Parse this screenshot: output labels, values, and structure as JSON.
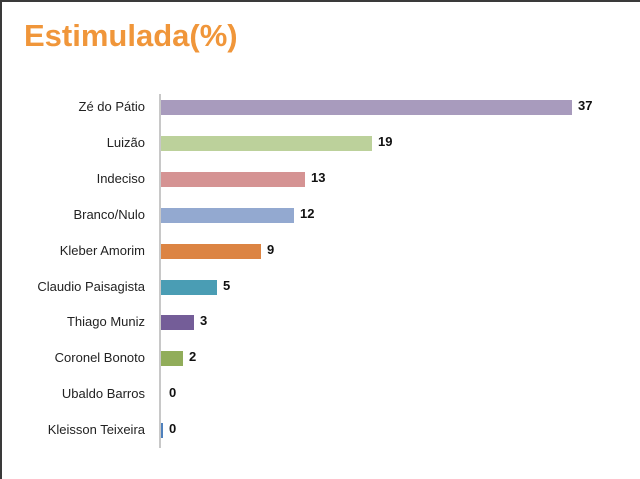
{
  "title": "Estimulada(%)",
  "chart_data": {
    "type": "bar",
    "orientation": "horizontal",
    "title": "Estimulada(%)",
    "xlabel": "",
    "ylabel": "",
    "grid": false,
    "legend": null,
    "data_labels": true,
    "categories": [
      "Zé do Pátio",
      "Luizão",
      "Indeciso",
      "Branco/Nulo",
      "Kleber Amorim",
      "Claudio Paisagista",
      "Thiago Muniz",
      "Coronel Bonoto",
      "Ubaldo Barros",
      "Kleisson Teixeira"
    ],
    "values": [
      37,
      19,
      13,
      12,
      9,
      5,
      3,
      2,
      0,
      0
    ],
    "colors": [
      "#a89bbd",
      "#bcd19b",
      "#d59393",
      "#93a9d0",
      "#dc8443",
      "#4a9db4",
      "#745d98",
      "#91ad5a",
      "#c0504d",
      "#4f81bd"
    ],
    "xlim": [
      0,
      37
    ]
  },
  "rows": [
    {
      "label": "Zé do Pátio",
      "value": "37"
    },
    {
      "label": "Luizão",
      "value": "19"
    },
    {
      "label": "Indeciso",
      "value": "13"
    },
    {
      "label": "Branco/Nulo",
      "value": "12"
    },
    {
      "label": "Kleber Amorim",
      "value": "9"
    },
    {
      "label": "Claudio Paisagista",
      "value": "5"
    },
    {
      "label": "Thiago Muniz",
      "value": "3"
    },
    {
      "label": "Coronel Bonoto",
      "value": "2"
    },
    {
      "label": "Ubaldo Barros",
      "value": "0"
    },
    {
      "label": "Kleisson Teixeira",
      "value": "0"
    }
  ]
}
